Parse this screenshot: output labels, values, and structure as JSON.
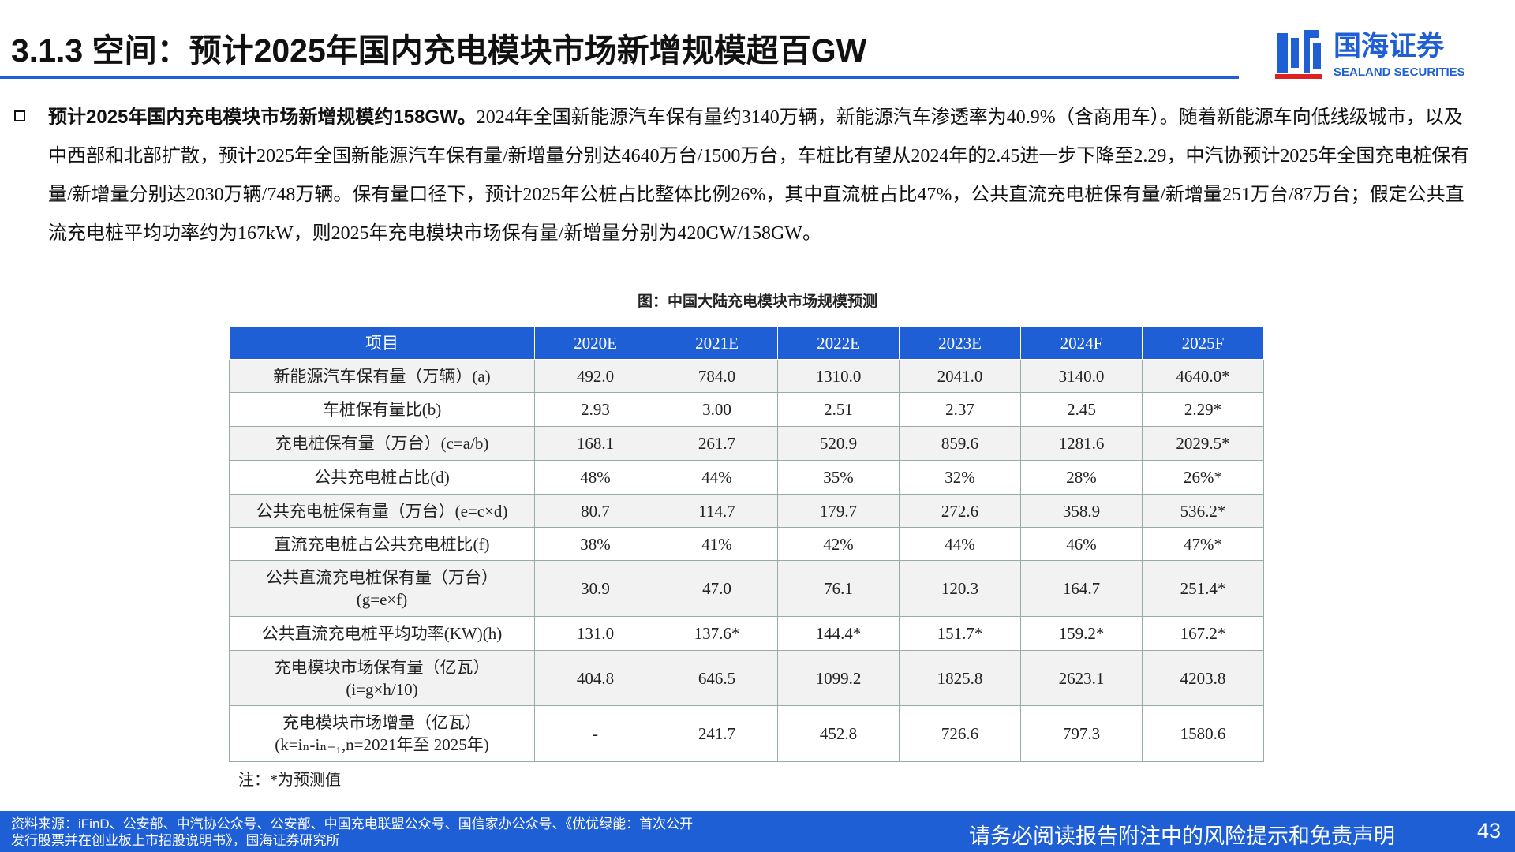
{
  "header": {
    "title": "3.1.3 空间：预计2025年国内充电模块市场新增规模超百GW",
    "logo_cn": "国海证券",
    "logo_en": "SEALAND SECURITIES"
  },
  "bullet": {
    "lead": "预计2025年国内充电模块市场新增规模约158GW。",
    "text": "2024年全国新能源汽车保有量约3140万辆，新能源汽车渗透率为40.9%（含商用车）。随着新能源车向低线级城市，以及中西部和北部扩散，预计2025年全国新能源汽车保有量/新增量分别达4640万台/1500万台，车桩比有望从2024年的2.45进一步下降至2.29，中汽协预计2025年全国充电桩保有量/新增量分别达2030万辆/748万辆。保有量口径下，预计2025年公桩占比整体比例26%，其中直流桩占比47%，公共直流充电桩保有量/新增量251万台/87万台；假定公共直流充电桩平均功率约为167kW，则2025年充电模块市场保有量/新增量分别为420GW/158GW。"
  },
  "table": {
    "caption": "图：中国大陆充电模块市场规模预测",
    "header": [
      "项目",
      "2020E",
      "2021E",
      "2022E",
      "2023E",
      "2024F",
      "2025F"
    ],
    "rows": [
      [
        "新能源汽车保有量（万辆）(a)",
        "492.0",
        "784.0",
        "1310.0",
        "2041.0",
        "3140.0",
        "4640.0*"
      ],
      [
        "车桩保有量比(b)",
        "2.93",
        "3.00",
        "2.51",
        "2.37",
        "2.45",
        "2.29*"
      ],
      [
        "充电桩保有量（万台）(c=a/b)",
        "168.1",
        "261.7",
        "520.9",
        "859.6",
        "1281.6",
        "2029.5*"
      ],
      [
        "公共充电桩占比(d)",
        "48%",
        "44%",
        "35%",
        "32%",
        "28%",
        "26%*"
      ],
      [
        "公共充电桩保有量（万台）(e=c×d)",
        "80.7",
        "114.7",
        "179.7",
        "272.6",
        "358.9",
        "536.2*"
      ],
      [
        "直流充电桩占公共充电桩比(f)",
        "38%",
        "41%",
        "42%",
        "44%",
        "46%",
        "47%*"
      ],
      [
        "公共直流充电桩保有量（万台）\n(g=e×f)",
        "30.9",
        "47.0",
        "76.1",
        "120.3",
        "164.7",
        "251.4*"
      ],
      [
        "公共直流充电桩平均功率(KW)(h)",
        "131.0",
        "137.6*",
        "144.4*",
        "151.7*",
        "159.2*",
        "167.2*"
      ],
      [
        "充电模块市场保有量（亿瓦）\n(i=g×h/10)",
        "404.8",
        "646.5",
        "1099.2",
        "1825.8",
        "2623.1",
        "4203.8"
      ],
      [
        "充电模块市场增量（亿瓦）\n(k=iₙ-iₙ₋₁,n=2021年至 2025年)",
        "-",
        "241.7",
        "452.8",
        "726.6",
        "797.3",
        "1580.6"
      ]
    ],
    "note": "注：*为预测值"
  },
  "footer": {
    "source": "资料来源：iFinD、公安部、中汽协公众号、公安部、中国充电联盟公众号、国信家办公众号、《优优绿能：首次公开\n发行股票并在创业板上市招股说明书》，国海证券研究所",
    "disclaimer": "请务必阅读报告附注中的风险提示和免责声明",
    "page": "43"
  }
}
